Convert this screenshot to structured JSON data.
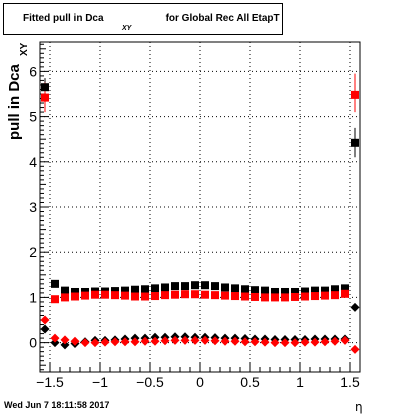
{
  "chart_data": {
    "type": "scatter",
    "title": "Fitted pull in Dca",
    "title_subscript": "XY",
    "title_suffix": "for Global Rec All EtapT",
    "ylabel": "pull in Dca",
    "ylabel_subscript": "XY",
    "xlabel": "η",
    "xlim": [
      -1.6,
      1.6
    ],
    "ylim": [
      -0.65,
      6.65
    ],
    "grid": true,
    "x_ticks": [
      -1.5,
      -1,
      -0.5,
      0,
      0.5,
      1,
      1.5
    ],
    "x_tick_labels": [
      "−1.5",
      "−1",
      "−0.5",
      "0",
      "0.5",
      "1",
      "1.5"
    ],
    "y_ticks": [
      0,
      1,
      2,
      3,
      4,
      5,
      6
    ],
    "y_tick_labels": [
      "0",
      "1",
      "2",
      "3",
      "4",
      "5",
      "6"
    ],
    "series": [
      {
        "color": "#000000",
        "marker": "square",
        "x": [
          -1.55,
          -1.45,
          -1.35,
          -1.25,
          -1.15,
          -1.05,
          -0.95,
          -0.85,
          -0.75,
          -0.65,
          -0.55,
          -0.45,
          -0.35,
          -0.25,
          -0.15,
          -0.05,
          0.05,
          0.15,
          0.25,
          0.35,
          0.45,
          0.55,
          0.65,
          0.75,
          0.85,
          0.95,
          1.05,
          1.15,
          1.25,
          1.35,
          1.45,
          1.55
        ],
        "y": [
          5.65,
          1.3,
          1.15,
          1.12,
          1.12,
          1.13,
          1.13,
          1.14,
          1.15,
          1.17,
          1.18,
          1.2,
          1.22,
          1.25,
          1.25,
          1.27,
          1.27,
          1.25,
          1.22,
          1.2,
          1.18,
          1.16,
          1.15,
          1.12,
          1.12,
          1.12,
          1.13,
          1.15,
          1.15,
          1.18,
          1.2,
          4.42
        ]
      },
      {
        "color": "#ff0000",
        "marker": "square",
        "x": [
          -1.55,
          -1.45,
          -1.35,
          -1.25,
          -1.15,
          -1.05,
          -0.95,
          -0.85,
          -0.75,
          -0.65,
          -0.55,
          -0.45,
          -0.35,
          -0.25,
          -0.15,
          -0.05,
          0.05,
          0.15,
          0.25,
          0.35,
          0.45,
          0.55,
          0.65,
          0.75,
          0.85,
          0.95,
          1.05,
          1.15,
          1.25,
          1.35,
          1.45,
          1.55
        ],
        "y": [
          5.42,
          0.96,
          1.0,
          1.02,
          1.04,
          1.06,
          1.06,
          1.05,
          1.04,
          1.02,
          1.02,
          1.03,
          1.05,
          1.06,
          1.07,
          1.07,
          1.06,
          1.05,
          1.04,
          1.03,
          1.02,
          1.01,
          1.0,
          1.0,
          1.0,
          1.01,
          1.02,
          1.03,
          1.04,
          1.05,
          1.08,
          5.48
        ]
      },
      {
        "color": "#000000",
        "marker": "diamond",
        "x": [
          -1.55,
          -1.45,
          -1.35,
          -1.25,
          -1.15,
          -1.05,
          -0.95,
          -0.85,
          -0.75,
          -0.65,
          -0.55,
          -0.45,
          -0.35,
          -0.25,
          -0.15,
          -0.05,
          0.05,
          0.15,
          0.25,
          0.35,
          0.45,
          0.55,
          0.65,
          0.75,
          0.85,
          0.95,
          1.05,
          1.15,
          1.25,
          1.35,
          1.45,
          1.55
        ],
        "y": [
          0.3,
          0.0,
          -0.05,
          -0.02,
          0.02,
          0.05,
          0.05,
          0.06,
          0.08,
          0.1,
          0.1,
          0.12,
          0.12,
          0.13,
          0.13,
          0.12,
          0.12,
          0.11,
          0.1,
          0.1,
          0.09,
          0.08,
          0.08,
          0.07,
          0.07,
          0.07,
          0.07,
          0.08,
          0.08,
          0.08,
          0.08,
          0.78
        ]
      },
      {
        "color": "#ff0000",
        "marker": "diamond",
        "x": [
          -1.55,
          -1.45,
          -1.35,
          -1.25,
          -1.15,
          -1.05,
          -0.95,
          -0.85,
          -0.75,
          -0.65,
          -0.55,
          -0.45,
          -0.35,
          -0.25,
          -0.15,
          -0.05,
          0.05,
          0.15,
          0.25,
          0.35,
          0.45,
          0.55,
          0.65,
          0.75,
          0.85,
          0.95,
          1.05,
          1.15,
          1.25,
          1.35,
          1.45,
          1.55
        ],
        "y": [
          0.5,
          0.1,
          0.06,
          0.03,
          0.0,
          0.0,
          0.01,
          0.02,
          0.02,
          0.02,
          0.03,
          0.03,
          0.04,
          0.05,
          0.05,
          0.05,
          0.05,
          0.04,
          0.03,
          0.03,
          0.02,
          0.02,
          0.01,
          0.0,
          0.0,
          0.0,
          0.01,
          0.01,
          0.02,
          0.03,
          0.05,
          -0.15
        ]
      }
    ],
    "error_bars": [
      {
        "series": 0,
        "x": -1.55,
        "lo": 5.45,
        "hi": 5.85
      },
      {
        "series": 1,
        "x": -1.55,
        "lo": 5.1,
        "hi": 5.75
      },
      {
        "series": 0,
        "x": 1.55,
        "lo": 4.1,
        "hi": 4.75
      },
      {
        "series": 1,
        "x": 1.55,
        "lo": 5.1,
        "hi": 5.95
      }
    ]
  },
  "footer": {
    "date": "Wed Jun  7 18:11:58 2017"
  }
}
